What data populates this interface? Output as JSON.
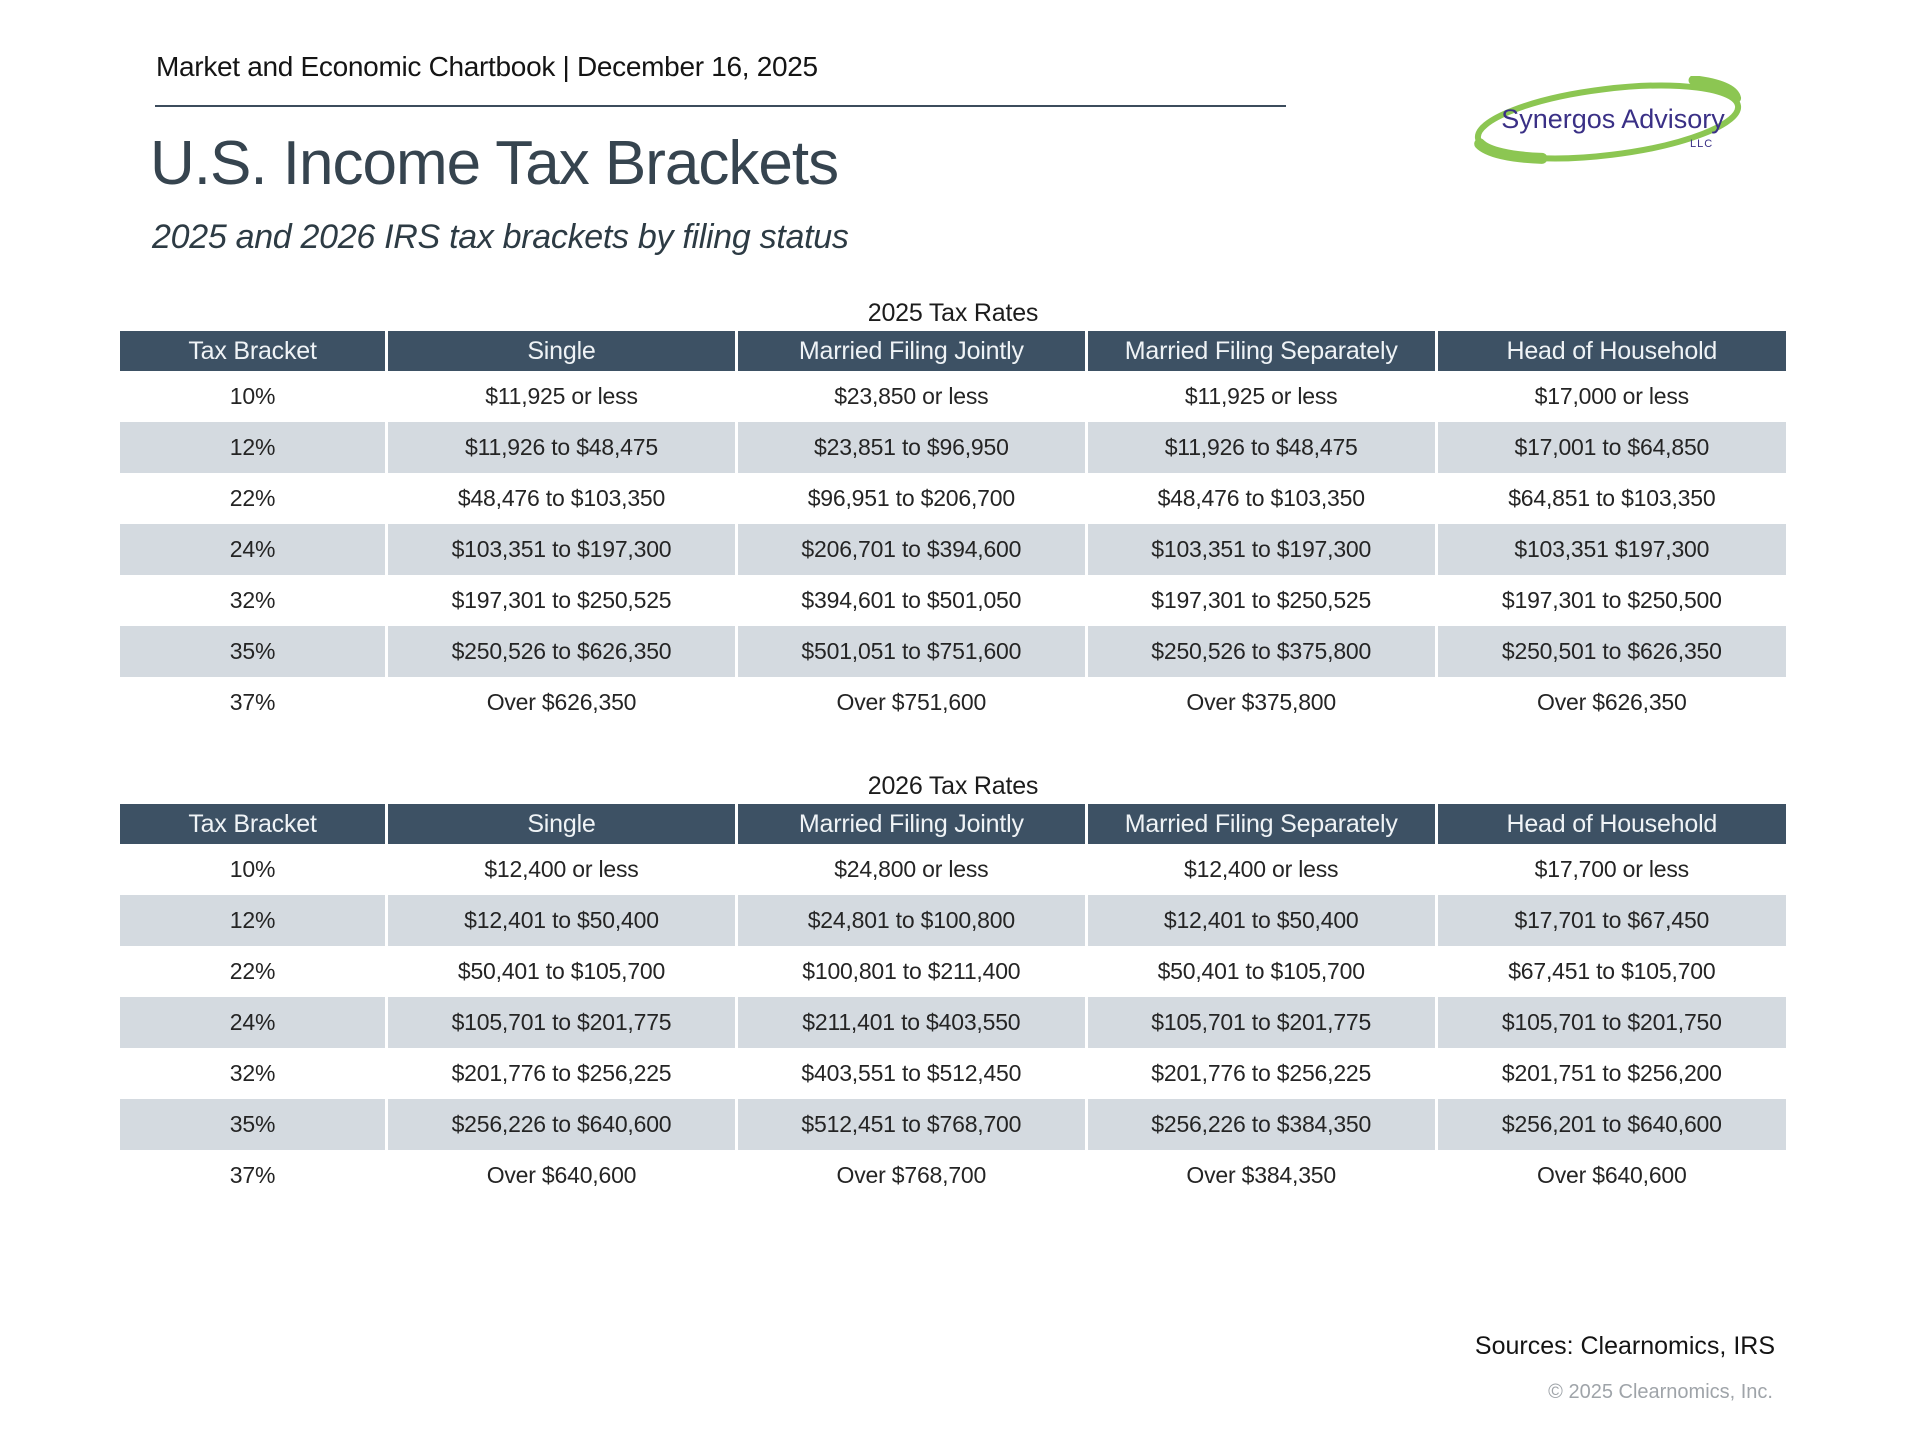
{
  "page": {
    "eyebrow": "Market and Economic Chartbook | December 16, 2025",
    "title": "U.S. Income Tax Brackets",
    "subtitle": "2025 and 2026 IRS tax brackets by filing status"
  },
  "logo": {
    "name": "Synergos Advisory",
    "suffix": "LLC"
  },
  "colors": {
    "table_header_bg": "#3d5164",
    "row_stripe": "#d4dae0",
    "title_slate": "#36444f",
    "logo_green": "#8cc652",
    "logo_purple": "#3a3086",
    "rule": "#3c4c5c"
  },
  "tables": [
    {
      "caption": "2025 Tax Rates",
      "columns": [
        "Tax Bracket",
        "Single",
        "Married Filing Jointly",
        "Married Filing Separately",
        "Head of Household"
      ],
      "rows": [
        [
          "10%",
          "$11,925 or less",
          "$23,850 or less",
          "$11,925 or less",
          "$17,000 or less"
        ],
        [
          "12%",
          "$11,926 to $48,475",
          "$23,851 to $96,950",
          "$11,926 to $48,475",
          "$17,001 to $64,850"
        ],
        [
          "22%",
          "$48,476 to $103,350",
          "$96,951 to $206,700",
          "$48,476 to $103,350",
          "$64,851 to $103,350"
        ],
        [
          "24%",
          "$103,351 to $197,300",
          "$206,701 to $394,600",
          "$103,351 to $197,300",
          "$103,351 $197,300"
        ],
        [
          "32%",
          "$197,301 to $250,525",
          "$394,601 to $501,050",
          "$197,301 to $250,525",
          "$197,301 to $250,500"
        ],
        [
          "35%",
          "$250,526 to $626,350",
          "$501,051 to $751,600",
          "$250,526 to $375,800",
          "$250,501 to $626,350"
        ],
        [
          "37%",
          "Over $626,350",
          "Over $751,600",
          "Over $375,800",
          "Over $626,350"
        ]
      ]
    },
    {
      "caption": "2026 Tax Rates",
      "columns": [
        "Tax Bracket",
        "Single",
        "Married Filing Jointly",
        "Married Filing Separately",
        "Head of Household"
      ],
      "rows": [
        [
          "10%",
          "$12,400 or less",
          "$24,800 or less",
          "$12,400 or less",
          "$17,700 or less"
        ],
        [
          "12%",
          "$12,401 to $50,400",
          "$24,801 to $100,800",
          "$12,401 to $50,400",
          "$17,701 to $67,450"
        ],
        [
          "22%",
          "$50,401 to $105,700",
          "$100,801 to $211,400",
          "$50,401 to $105,700",
          "$67,451 to $105,700"
        ],
        [
          "24%",
          "$105,701 to $201,775",
          "$211,401 to $403,550",
          "$105,701 to $201,775",
          "$105,701 to $201,750"
        ],
        [
          "32%",
          "$201,776 to $256,225",
          "$403,551 to $512,450",
          "$201,776 to $256,225",
          "$201,751 to $256,200"
        ],
        [
          "35%",
          "$256,226 to $640,600",
          "$512,451 to $768,700",
          "$256,226 to $384,350",
          "$256,201 to $640,600"
        ],
        [
          "37%",
          "Over $640,600",
          "Over $768,700",
          "Over $384,350",
          "Over $640,600"
        ]
      ]
    }
  ],
  "footer": {
    "sources": "Sources: Clearnomics, IRS",
    "copyright": "© 2025 Clearnomics, Inc."
  }
}
